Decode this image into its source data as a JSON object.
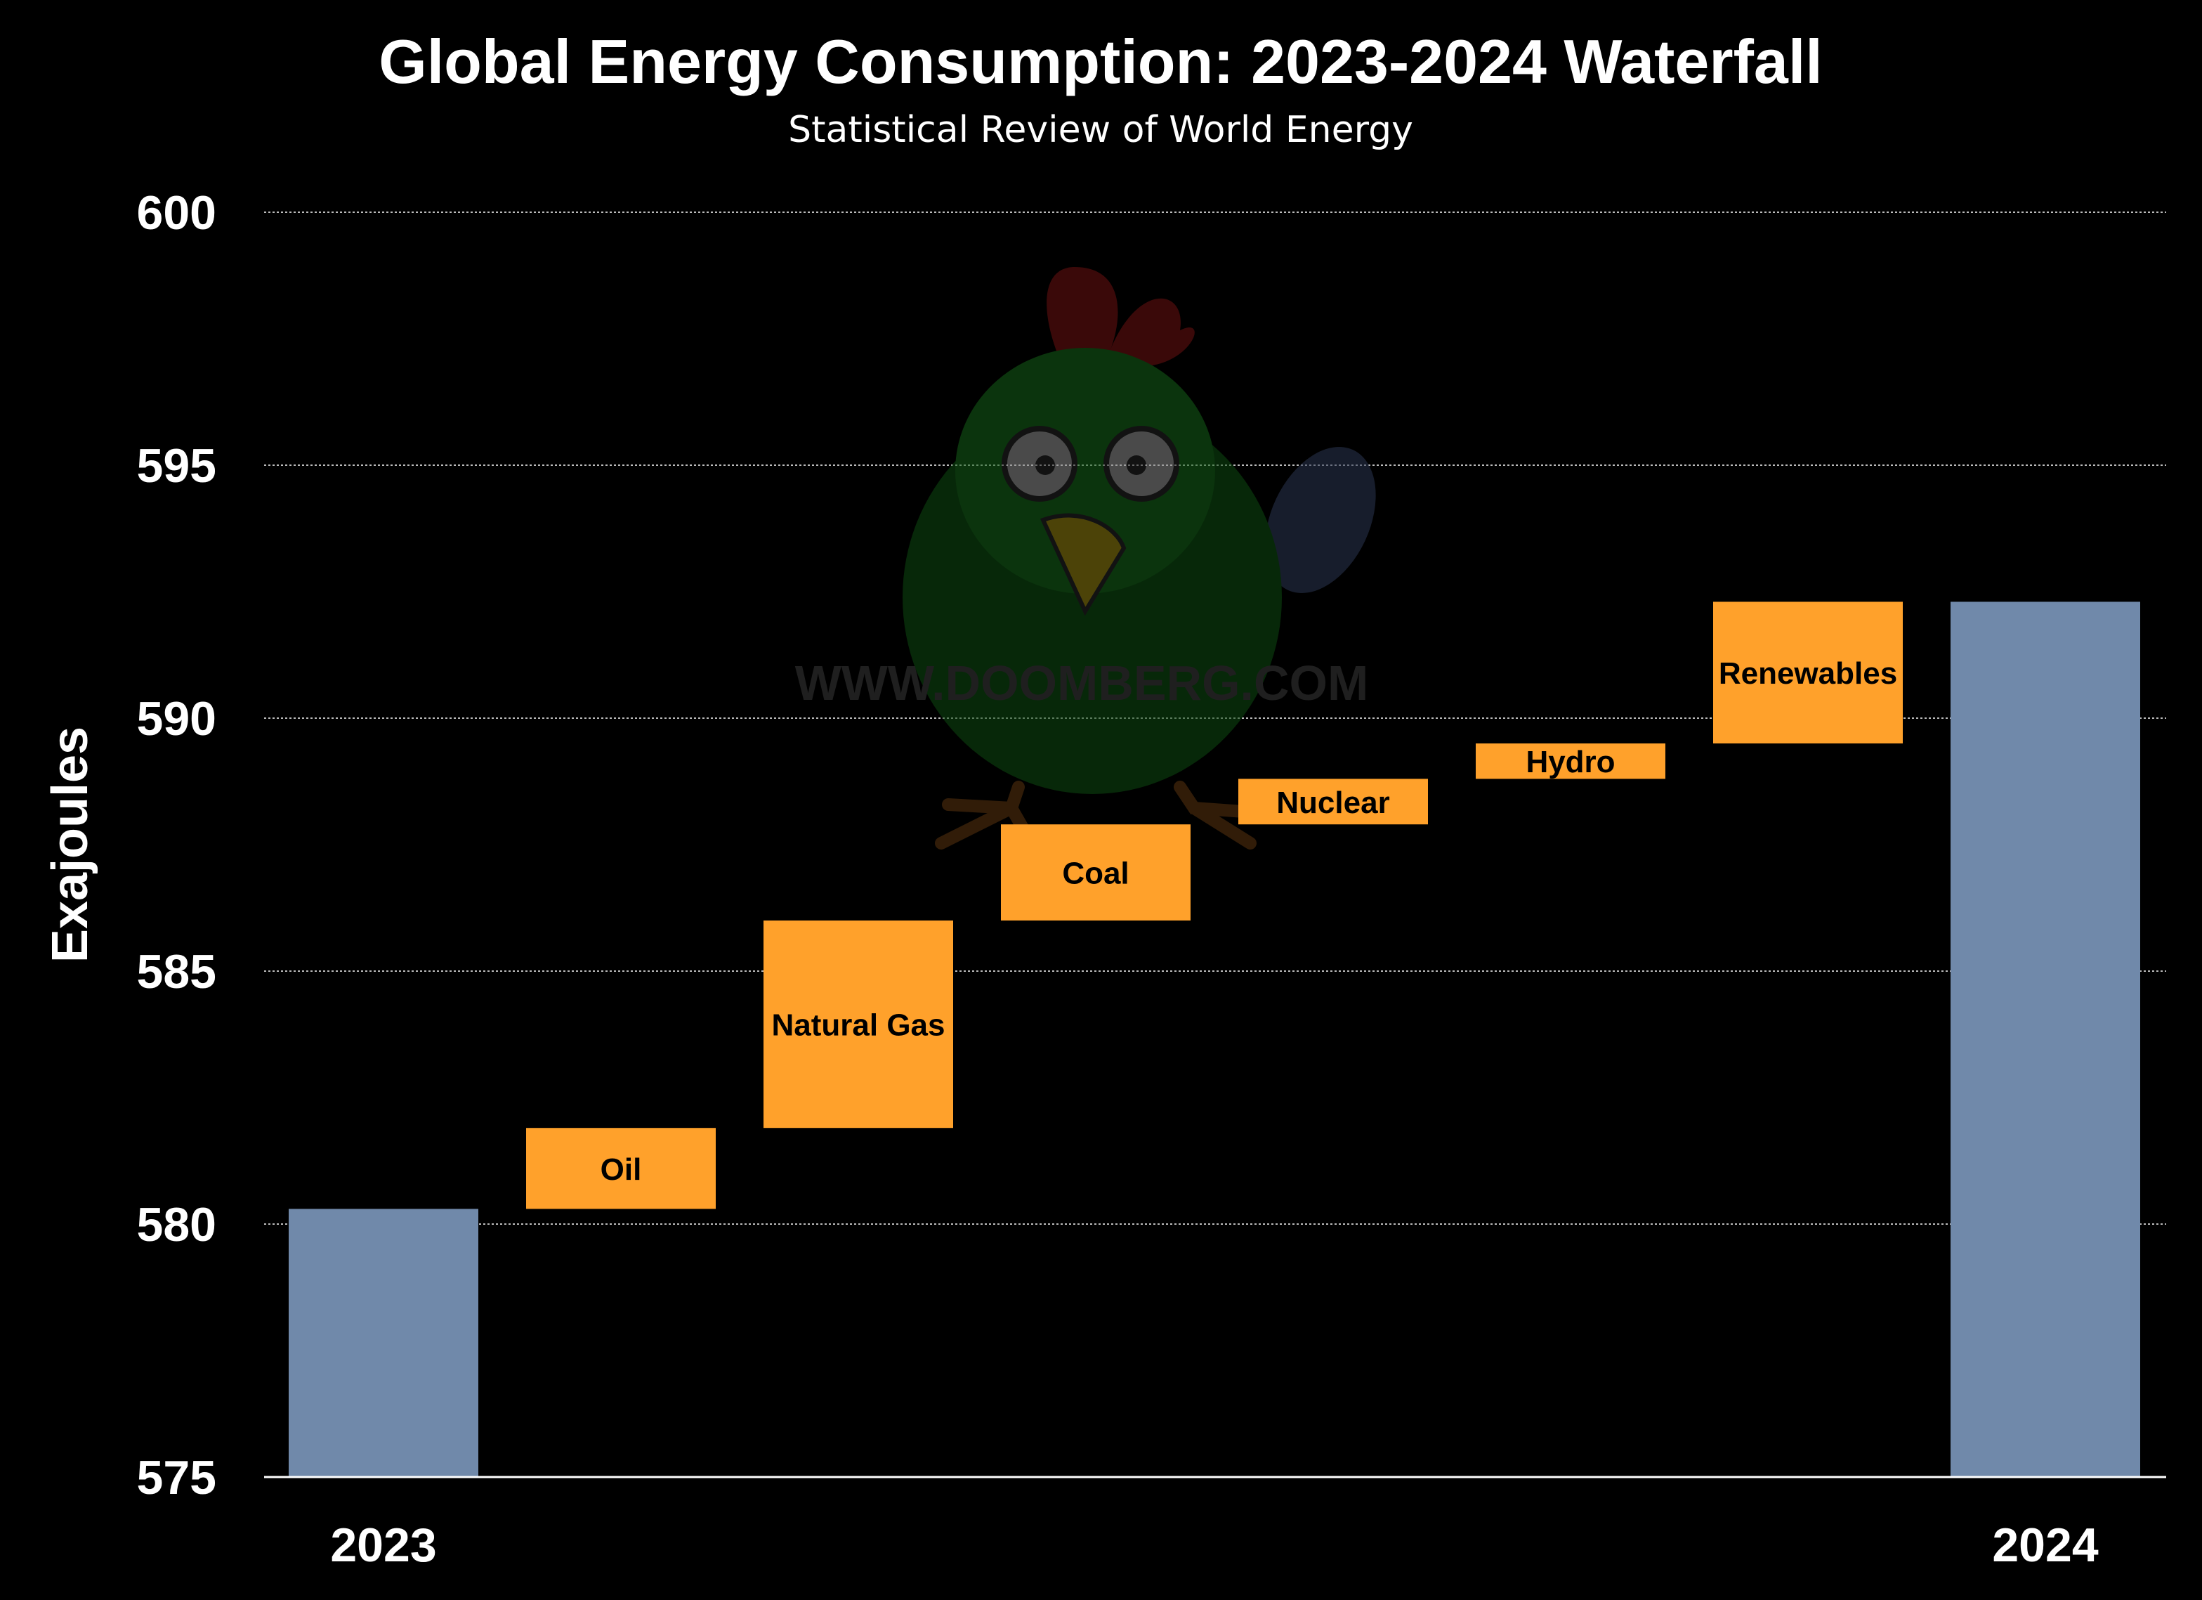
{
  "chart_data": {
    "type": "waterfall",
    "title": "Global Energy Consumption: 2023-2024 Waterfall",
    "subtitle": "Statistical Review of World Energy",
    "ylabel": "Exajoules",
    "xlabel": "",
    "ylim": [
      575,
      600
    ],
    "yticks": [
      575,
      580,
      585,
      590,
      595,
      600
    ],
    "grid": true,
    "start": {
      "label": "2023",
      "value": 580.3
    },
    "steps": [
      {
        "label": "Oil",
        "delta": 1.6
      },
      {
        "label": "Natural Gas",
        "delta": 4.1
      },
      {
        "label": "Coal",
        "delta": 1.9
      },
      {
        "label": "Nuclear",
        "delta": 0.9
      },
      {
        "label": "Hydro",
        "delta": 0.7
      },
      {
        "label": "Renewables",
        "delta": 2.8
      }
    ],
    "end": {
      "label": "2024",
      "value": 592.3
    },
    "colors": {
      "total": "#7089AA",
      "increase": "#FFA12B",
      "background": "#000000",
      "text": "#FFFFFF"
    },
    "watermark": "WWW.DOOMBERG.COM"
  }
}
